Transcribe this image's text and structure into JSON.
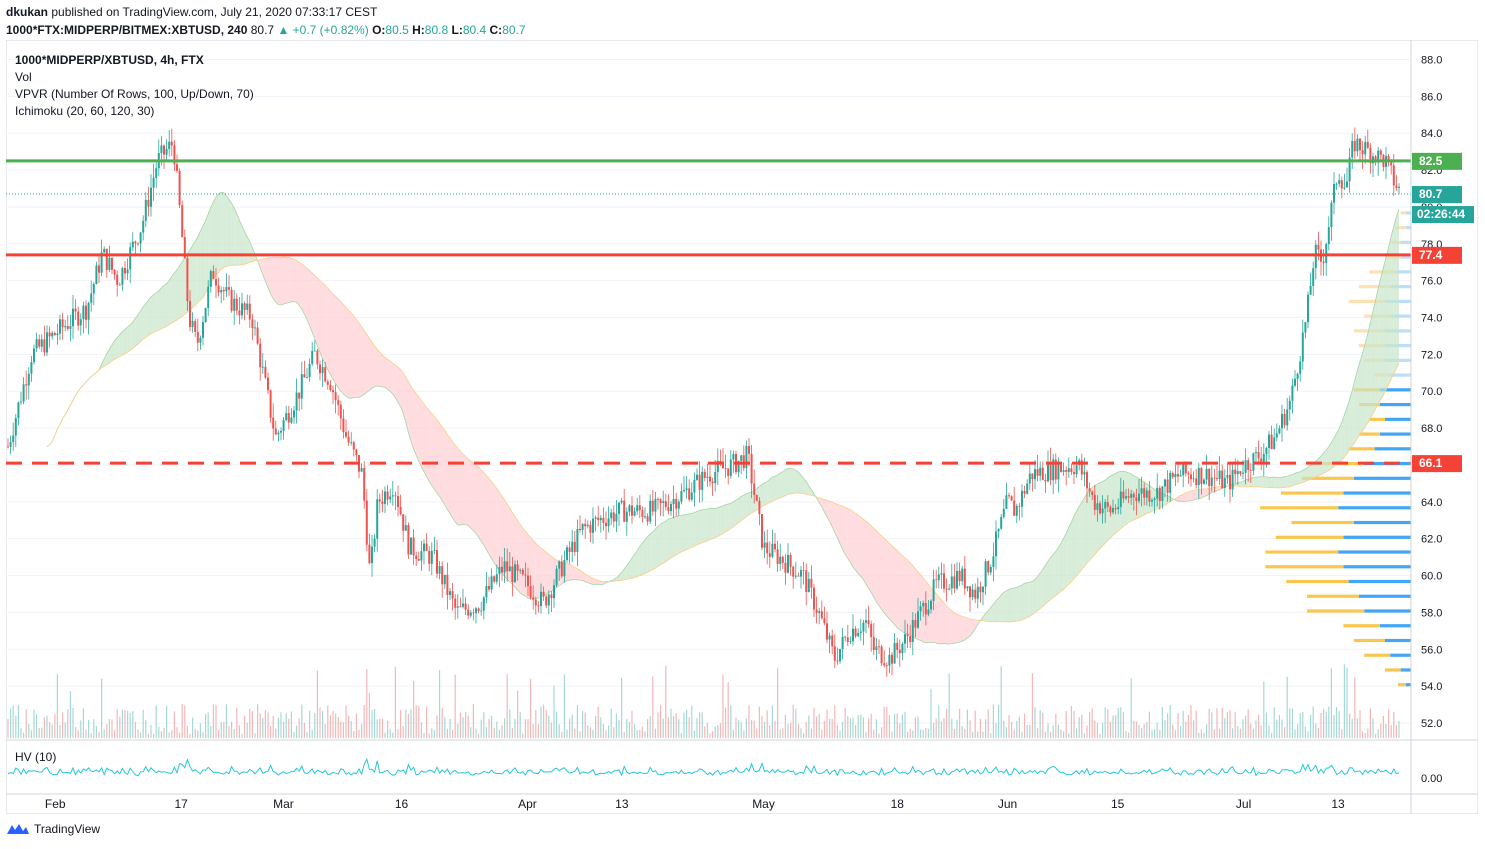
{
  "header": {
    "author": "dkukan",
    "published_text": "published on TradingView.com, July 21, 2020 07:33:17 CEST",
    "symbol_line": "1000*FTX:MIDPERP/BITMEX:XBTUSD, 240",
    "last": "80.7",
    "change": "+0.7 (+0.82%)",
    "o_label": "O:",
    "o_value": "80.5",
    "h_label": "H:",
    "h_value": "80.8",
    "l_label": "L:",
    "l_value": "80.4",
    "c_label": "C:",
    "c_value": "80.7"
  },
  "legend": {
    "title": "1000*MIDPERP/XBTUSD, 4h, FTX",
    "vol": "Vol",
    "vpvr": "VPVR (Number Of Rows, 100, Up/Down, 70)",
    "ichimoku": "Ichimoku (20, 60, 120, 30)"
  },
  "subpane": {
    "label": "HV (10)",
    "tick": "0.00"
  },
  "footer": {
    "brand": "TradingView"
  },
  "colors": {
    "up": "#26a69a",
    "down": "#ef5350",
    "green_line": "#4caf50",
    "red_line": "#f44336",
    "cloud_green": "#c8e6c9",
    "cloud_red": "#ffcdd2",
    "vpvr_up": "#f9c74f",
    "vpvr_down": "#42a5f5",
    "volume": "#ef9a9a",
    "hv": "#26c6da",
    "last_price": "#26a69a"
  },
  "chart_data": {
    "type": "candlestick",
    "title": "1000*MIDPERP/XBTUSD, 4h, FTX",
    "x_labels": [
      "Feb",
      "17",
      "Mar",
      "16",
      "Apr",
      "13",
      "May",
      "18",
      "Jun",
      "15",
      "Jul",
      "13"
    ],
    "x_label_dates": [
      "2020-02-01",
      "2020-02-17",
      "2020-03-01",
      "2020-03-16",
      "2020-04-01",
      "2020-04-13",
      "2020-05-01",
      "2020-05-18",
      "2020-06-01",
      "2020-06-15",
      "2020-07-01",
      "2020-07-13"
    ],
    "x_range": [
      "2020-01-26",
      "2020-07-21"
    ],
    "y_ticks": [
      52.0,
      54.0,
      56.0,
      58.0,
      60.0,
      62.0,
      64.0,
      66.0,
      68.0,
      70.0,
      72.0,
      74.0,
      76.0,
      78.0,
      80.0,
      82.0,
      84.0,
      86.0,
      88.0
    ],
    "y_tick_labels": [
      "52.0",
      "54.0",
      "56.0",
      "58.0",
      "60.0",
      "62.0",
      "64.0",
      "66.0",
      "68.0",
      "70.0",
      "72.0",
      "74.0",
      "76.0",
      "78.0",
      "80.0",
      "82.0",
      "84.0",
      "86.0",
      "88.0"
    ],
    "ylim": [
      50.8,
      89.0
    ],
    "close_path": [
      [
        "2020-01-26",
        67.0
      ],
      [
        "2020-01-29",
        72.0
      ],
      [
        "2020-02-02",
        73.5
      ],
      [
        "2020-02-05",
        74.5
      ],
      [
        "2020-02-07",
        77.5
      ],
      [
        "2020-02-09",
        76.0
      ],
      [
        "2020-02-12",
        79.0
      ],
      [
        "2020-02-14",
        82.5
      ],
      [
        "2020-02-16",
        83.5
      ],
      [
        "2020-02-17",
        79.0
      ],
      [
        "2020-02-18",
        74.0
      ],
      [
        "2020-02-19",
        72.5
      ],
      [
        "2020-02-21",
        76.5
      ],
      [
        "2020-02-23",
        75.0
      ],
      [
        "2020-02-26",
        74.0
      ],
      [
        "2020-02-29",
        67.5
      ],
      [
        "2020-03-03",
        70.0
      ],
      [
        "2020-03-05",
        72.0
      ],
      [
        "2020-03-07",
        70.5
      ],
      [
        "2020-03-09",
        67.5
      ],
      [
        "2020-03-11",
        65.5
      ],
      [
        "2020-03-12",
        60.0
      ],
      [
        "2020-03-13",
        64.0
      ],
      [
        "2020-03-15",
        65.0
      ],
      [
        "2020-03-17",
        61.5
      ],
      [
        "2020-03-20",
        61.0
      ],
      [
        "2020-03-23",
        58.0
      ],
      [
        "2020-03-26",
        58.5
      ],
      [
        "2020-03-29",
        60.5
      ],
      [
        "2020-04-01",
        59.5
      ],
      [
        "2020-04-03",
        58.5
      ],
      [
        "2020-04-06",
        61.0
      ],
      [
        "2020-04-08",
        62.5
      ],
      [
        "2020-04-10",
        63.0
      ],
      [
        "2020-04-13",
        63.5
      ],
      [
        "2020-04-17",
        63.5
      ],
      [
        "2020-04-21",
        64.5
      ],
      [
        "2020-04-24",
        65.5
      ],
      [
        "2020-04-27",
        66.0
      ],
      [
        "2020-04-29",
        66.5
      ],
      [
        "2020-04-30",
        64.0
      ],
      [
        "2020-05-01",
        61.5
      ],
      [
        "2020-05-03",
        61.0
      ],
      [
        "2020-05-06",
        60.0
      ],
      [
        "2020-05-08",
        58.0
      ],
      [
        "2020-05-10",
        55.5
      ],
      [
        "2020-05-12",
        57.0
      ],
      [
        "2020-05-14",
        57.5
      ],
      [
        "2020-05-15",
        56.0
      ],
      [
        "2020-05-17",
        55.5
      ],
      [
        "2020-05-19",
        56.5
      ],
      [
        "2020-05-21",
        58.0
      ],
      [
        "2020-05-23",
        59.5
      ],
      [
        "2020-05-26",
        60.0
      ],
      [
        "2020-05-28",
        59.0
      ],
      [
        "2020-05-30",
        61.0
      ],
      [
        "2020-06-01",
        64.0
      ],
      [
        "2020-06-02",
        63.5
      ],
      [
        "2020-06-04",
        65.5
      ],
      [
        "2020-06-07",
        65.8
      ],
      [
        "2020-06-10",
        66.0
      ],
      [
        "2020-06-12",
        64.0
      ],
      [
        "2020-06-14",
        63.5
      ],
      [
        "2020-06-17",
        64.5
      ],
      [
        "2020-06-20",
        64.5
      ],
      [
        "2020-06-23",
        65.5
      ],
      [
        "2020-06-26",
        65.5
      ],
      [
        "2020-06-29",
        65.0
      ],
      [
        "2020-07-01",
        66.0
      ],
      [
        "2020-07-03",
        66.5
      ],
      [
        "2020-07-05",
        67.5
      ],
      [
        "2020-07-07",
        69.5
      ],
      [
        "2020-07-09",
        74.0
      ],
      [
        "2020-07-10",
        77.5
      ],
      [
        "2020-07-11",
        77.0
      ],
      [
        "2020-07-12",
        79.5
      ],
      [
        "2020-07-13",
        82.0
      ],
      [
        "2020-07-14",
        81.0
      ],
      [
        "2020-07-15",
        83.5
      ],
      [
        "2020-07-17",
        83.0
      ],
      [
        "2020-07-19",
        82.5
      ],
      [
        "2020-07-20",
        81.5
      ],
      [
        "2020-07-21",
        80.7
      ]
    ],
    "horizontal_lines": [
      {
        "value": 82.5,
        "label": "82.5",
        "color": "#4caf50",
        "style": "solid"
      },
      {
        "value": 77.4,
        "label": "77.4",
        "color": "#f44336",
        "style": "solid"
      },
      {
        "value": 66.1,
        "label": "66.1",
        "color": "#f44336",
        "style": "dashed"
      }
    ],
    "last_price": {
      "value": 80.7,
      "label": "80.7",
      "countdown": "02:26:44"
    },
    "volume_profile": {
      "rows": [
        [
          54.0,
          3,
          2
        ],
        [
          54.8,
          6,
          4
        ],
        [
          55.6,
          10,
          8
        ],
        [
          56.4,
          12,
          10
        ],
        [
          57.2,
          14,
          12
        ],
        [
          58.0,
          22,
          18
        ],
        [
          58.8,
          20,
          20
        ],
        [
          59.6,
          24,
          24
        ],
        [
          60.4,
          30,
          26
        ],
        [
          61.2,
          28,
          28
        ],
        [
          62.0,
          26,
          26
        ],
        [
          62.8,
          24,
          22
        ],
        [
          63.6,
          30,
          28
        ],
        [
          64.4,
          24,
          26
        ],
        [
          65.2,
          20,
          22
        ],
        [
          66.0,
          16,
          18
        ],
        [
          66.8,
          10,
          14
        ],
        [
          67.6,
          8,
          12
        ],
        [
          68.4,
          6,
          10
        ],
        [
          69.2,
          8,
          12
        ],
        [
          70.0,
          10,
          12
        ],
        [
          70.8,
          6,
          8
        ],
        [
          71.6,
          8,
          10
        ],
        [
          72.4,
          10,
          10
        ],
        [
          73.2,
          12,
          10
        ],
        [
          74.0,
          10,
          8
        ],
        [
          74.8,
          14,
          10
        ],
        [
          75.6,
          12,
          8
        ],
        [
          76.4,
          10,
          6
        ],
        [
          77.2,
          6,
          4
        ],
        [
          78.0,
          4,
          4
        ],
        [
          78.8,
          4,
          2
        ],
        [
          79.6,
          2,
          2
        ]
      ]
    }
  }
}
